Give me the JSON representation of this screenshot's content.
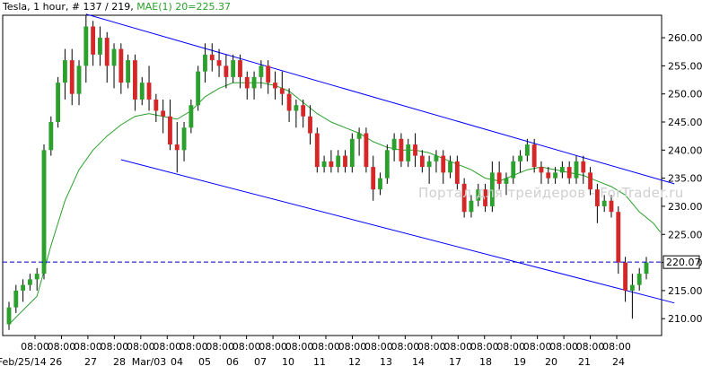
{
  "header": {
    "symbol": "Tesla",
    "timeframe": ", 1 hour, ",
    "counter": "# 137 / 219, ",
    "indicator": "MAE(1) 20=225.37"
  },
  "watermark": "Портал для трейдеров - ForTrader.ru",
  "colors": {
    "up": "#2ca02c",
    "down": "#d62728",
    "wick": "#000000",
    "channel": "#0000ff",
    "ma": "#2aa02a",
    "price_line": "#0000cc",
    "axis": "#000000",
    "grid": "#e6e6e6"
  },
  "chart_data": {
    "type": "candlestick",
    "ylim": [
      207,
      264
    ],
    "y_ticks": [
      "210.00",
      "215.00",
      "220.00",
      "225.00",
      "230.00",
      "235.00",
      "240.00",
      "245.00",
      "250.00",
      "255.00",
      "260.00"
    ],
    "last_price_label": "220.07",
    "x_time_labels": [
      "08:00",
      "08:00",
      "08:00",
      "08:00",
      "08:00",
      "08:00",
      "08:00",
      "08:00",
      "08:00",
      "08:00",
      "08:00",
      "08:00",
      "08:00",
      "08:00",
      "08:00",
      "08:00",
      "08:00",
      "08:00",
      "08:00",
      "08:00",
      "08:00",
      "08:00",
      "08:00"
    ],
    "x_date_labels": [
      "Feb/25/14 26",
      "27",
      "28",
      "Mar/03",
      "04",
      "05",
      "06",
      "07",
      "10",
      "11",
      "12",
      "13",
      "14",
      "17",
      "18",
      "19",
      "20",
      "21",
      "24"
    ],
    "bars": [
      [
        209,
        213,
        208,
        212
      ],
      [
        212,
        216,
        211,
        215
      ],
      [
        215,
        217,
        213,
        216
      ],
      [
        216,
        218,
        215,
        217
      ],
      [
        217,
        219,
        215,
        218
      ],
      [
        218,
        241,
        217,
        240
      ],
      [
        240,
        246,
        239,
        245
      ],
      [
        245,
        253,
        244,
        252
      ],
      [
        252,
        258,
        249,
        256
      ],
      [
        256,
        258,
        248,
        250
      ],
      [
        250,
        256,
        248,
        255
      ],
      [
        255,
        264,
        252,
        262
      ],
      [
        262,
        263,
        255,
        257
      ],
      [
        257,
        262,
        255,
        260
      ],
      [
        260,
        261,
        252,
        255
      ],
      [
        255,
        259,
        251,
        258
      ],
      [
        258,
        259,
        250,
        252
      ],
      [
        252,
        257,
        251,
        256
      ],
      [
        256,
        257,
        247,
        249
      ],
      [
        249,
        253,
        248,
        252
      ],
      [
        252,
        255,
        247,
        249
      ],
      [
        249,
        250,
        245,
        247
      ],
      [
        247,
        249,
        243,
        246
      ],
      [
        246,
        249,
        240,
        241
      ],
      [
        241,
        245,
        236,
        240
      ],
      [
        240,
        245,
        238,
        244
      ],
      [
        244,
        249,
        243,
        248
      ],
      [
        248,
        255,
        247,
        254
      ],
      [
        254,
        259,
        252,
        257
      ],
      [
        257,
        259,
        254,
        256
      ],
      [
        256,
        258,
        253,
        255
      ],
      [
        255,
        257,
        251,
        253
      ],
      [
        253,
        257,
        252,
        256
      ],
      [
        256,
        257,
        251,
        253
      ],
      [
        253,
        254,
        249,
        251
      ],
      [
        251,
        254,
        249,
        253
      ],
      [
        253,
        256,
        251,
        255
      ],
      [
        255,
        256,
        250,
        252
      ],
      [
        252,
        254,
        249,
        251
      ],
      [
        251,
        254,
        248,
        250
      ],
      [
        250,
        251,
        245,
        247
      ],
      [
        247,
        249,
        244,
        248
      ],
      [
        248,
        249,
        244,
        246
      ],
      [
        246,
        248,
        241,
        243
      ],
      [
        243,
        244,
        236,
        237
      ],
      [
        237,
        239,
        236,
        238
      ],
      [
        238,
        240,
        236,
        237
      ],
      [
        237,
        240,
        236,
        239
      ],
      [
        239,
        240,
        236,
        237
      ],
      [
        237,
        243,
        236,
        242
      ],
      [
        242,
        244,
        239,
        243
      ],
      [
        243,
        244,
        236,
        237
      ],
      [
        237,
        239,
        231,
        233
      ],
      [
        233,
        236,
        232,
        235
      ],
      [
        235,
        241,
        234,
        240
      ],
      [
        240,
        243,
        238,
        242
      ],
      [
        242,
        243,
        237,
        238
      ],
      [
        238,
        242,
        237,
        241
      ],
      [
        241,
        243,
        237,
        239
      ],
      [
        239,
        240,
        236,
        237
      ],
      [
        237,
        239,
        234,
        238
      ],
      [
        238,
        240,
        236,
        239
      ],
      [
        239,
        240,
        234,
        236
      ],
      [
        236,
        239,
        235,
        238
      ],
      [
        238,
        239,
        233,
        234
      ],
      [
        234,
        235,
        228,
        229
      ],
      [
        229,
        232,
        228,
        231
      ],
      [
        231,
        234,
        230,
        233
      ],
      [
        233,
        234,
        229,
        230
      ],
      [
        230,
        238,
        229,
        236
      ],
      [
        236,
        238,
        233,
        234
      ],
      [
        234,
        236,
        232,
        235
      ],
      [
        235,
        239,
        234,
        238
      ],
      [
        238,
        240,
        236,
        239
      ],
      [
        239,
        242,
        238,
        241
      ],
      [
        241,
        242,
        236,
        237
      ],
      [
        237,
        238,
        234,
        236
      ],
      [
        236,
        237,
        234,
        235
      ],
      [
        235,
        237,
        234,
        236
      ],
      [
        236,
        238,
        235,
        237
      ],
      [
        237,
        238,
        234,
        235
      ],
      [
        235,
        239,
        234,
        238
      ],
      [
        238,
        239,
        234,
        236
      ],
      [
        236,
        237,
        232,
        233
      ],
      [
        233,
        234,
        227,
        230
      ],
      [
        230,
        232,
        229,
        231
      ],
      [
        231,
        232,
        228,
        229
      ],
      [
        229,
        230,
        218,
        220
      ],
      [
        220,
        221,
        213,
        215
      ],
      [
        215,
        218,
        210,
        216
      ],
      [
        216,
        219,
        215,
        218
      ],
      [
        218,
        221,
        217,
        220
      ]
    ],
    "moving_average": {
      "name": "MAE(1) 20",
      "last_value": 225.37,
      "values": [
        [
          0,
          209
        ],
        [
          2,
          211.5
        ],
        [
          4,
          214
        ],
        [
          6,
          223
        ],
        [
          8,
          231
        ],
        [
          10,
          236.5
        ],
        [
          12,
          240
        ],
        [
          14,
          242.5
        ],
        [
          16,
          244.5
        ],
        [
          18,
          246
        ],
        [
          20,
          246.5
        ],
        [
          22,
          246
        ],
        [
          24,
          245.5
        ],
        [
          26,
          247
        ],
        [
          28,
          249.5
        ],
        [
          30,
          251
        ],
        [
          32,
          252
        ],
        [
          34,
          252
        ],
        [
          36,
          252
        ],
        [
          38,
          251.5
        ],
        [
          40,
          250.5
        ],
        [
          42,
          248.5
        ],
        [
          44,
          246.5
        ],
        [
          46,
          245
        ],
        [
          48,
          244
        ],
        [
          50,
          243
        ],
        [
          52,
          241.5
        ],
        [
          54,
          240.5
        ],
        [
          56,
          240
        ],
        [
          58,
          240
        ],
        [
          60,
          239.5
        ],
        [
          62,
          238.5
        ],
        [
          64,
          237.5
        ],
        [
          66,
          236.5
        ],
        [
          68,
          235
        ],
        [
          70,
          234.5
        ],
        [
          72,
          235.5
        ],
        [
          74,
          236.5
        ],
        [
          76,
          237
        ],
        [
          78,
          236.5
        ],
        [
          80,
          236
        ],
        [
          82,
          235.5
        ],
        [
          84,
          234.5
        ],
        [
          86,
          233.5
        ],
        [
          88,
          232
        ],
        [
          90,
          229
        ],
        [
          92,
          227
        ],
        [
          93,
          225.4
        ]
      ]
    },
    "channel_upper": [
      [
        11,
        264.2
      ],
      [
        95,
        234
      ]
    ],
    "channel_lower": [
      [
        16,
        238.3
      ],
      [
        95,
        212.8
      ]
    ],
    "price_line_value": 220.07
  }
}
